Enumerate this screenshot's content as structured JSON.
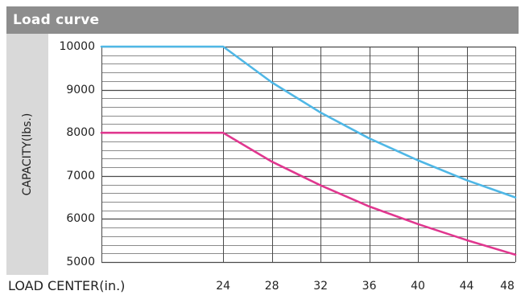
{
  "header": {
    "title": "Load curve"
  },
  "chart_data": {
    "type": "line",
    "title": "Load curve",
    "xlabel": "LOAD CENTER(in.)",
    "ylabel": "CAPACITY(lbs.)",
    "xlim": [
      14,
      48
    ],
    "ylim": [
      5000,
      10000
    ],
    "x_ticks": [
      24,
      28,
      32,
      36,
      40,
      44,
      48
    ],
    "y_ticks": [
      5000,
      6000,
      7000,
      8000,
      9000,
      10000
    ],
    "x_tick_labels": [
      "24",
      "28",
      "32",
      "36",
      "40",
      "44",
      "48"
    ],
    "y_tick_labels": [
      "5000",
      "6000",
      "7000",
      "8000",
      "9000",
      "10000"
    ],
    "grid": true,
    "series": [
      {
        "color": "#4fb7e6",
        "x": [
          14,
          24,
          28,
          32,
          36,
          40,
          44,
          48
        ],
        "y": [
          10000,
          10000,
          9170,
          8470,
          7870,
          7360,
          6900,
          6500
        ]
      },
      {
        "color": "#e0378f",
        "x": [
          14,
          24,
          28,
          32,
          36,
          40,
          44,
          48
        ],
        "y": [
          8000,
          8000,
          7330,
          6780,
          6290,
          5880,
          5510,
          5170
        ]
      }
    ]
  },
  "colors": {
    "header_bg": "#8d8d8d",
    "panel_bg": "#d9d9d9",
    "grid": "#4a4a4a"
  }
}
